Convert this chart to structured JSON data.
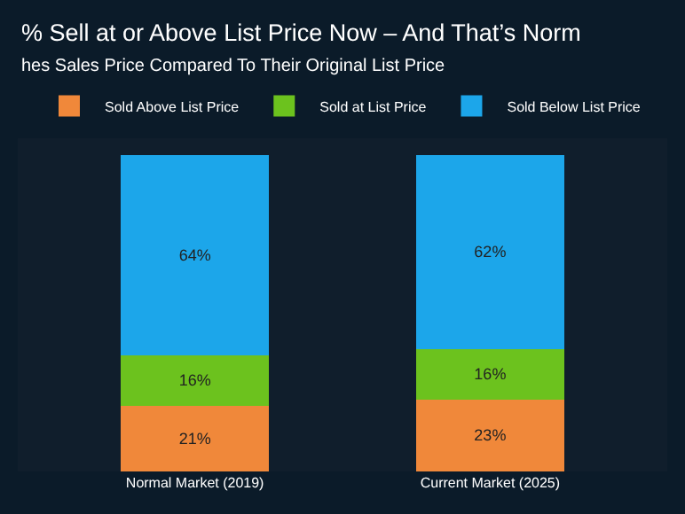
{
  "chart_data": {
    "type": "bar",
    "stacked": true,
    "tick_labels": "x",
    "legend": "top",
    "title": "% Sell at or Above List Price Now – And That’s Norm",
    "subtitle": "hes Sales Price Compared To Their Original List Price",
    "categories": [
      "Normal Market (2019)",
      "Current Market (2025)"
    ],
    "series": [
      {
        "name": "Sold Above List Price",
        "color": "#f0883a",
        "values": [
          21,
          23
        ],
        "value_labels": [
          "21%",
          "23%"
        ]
      },
      {
        "name": "Sold at List Price",
        "color": "#6cc21e",
        "values": [
          16,
          16
        ],
        "value_labels": [
          "16%",
          "16%"
        ]
      },
      {
        "name": "Sold Below List Price",
        "color": "#1ca6ea",
        "values": [
          64,
          62
        ],
        "value_labels": [
          "64%",
          "62%"
        ]
      }
    ]
  }
}
